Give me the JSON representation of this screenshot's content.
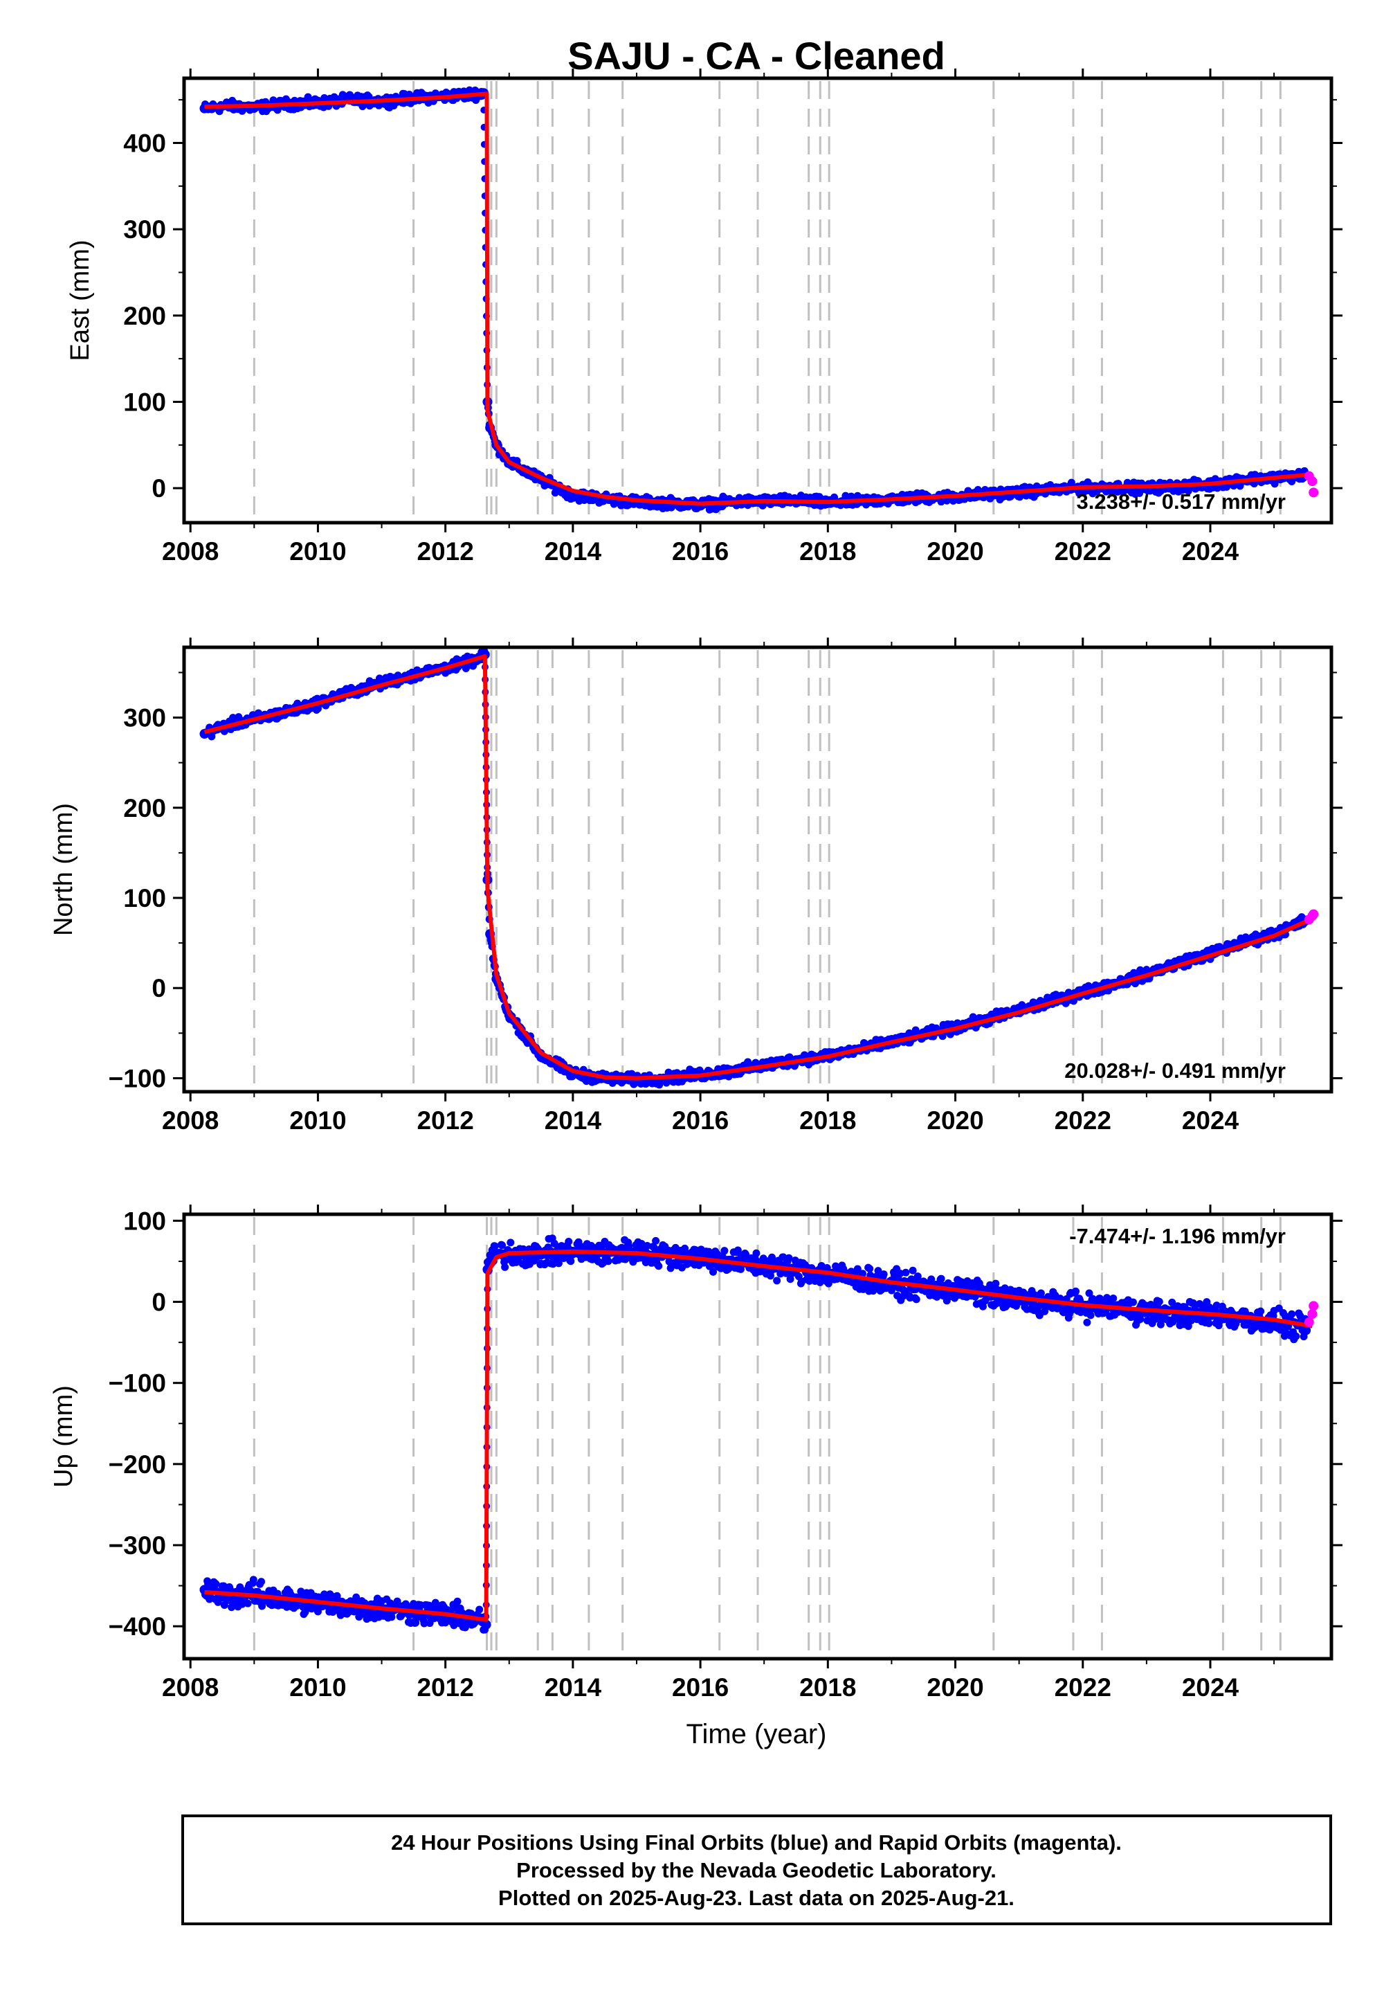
{
  "title": "SAJU  - CA - Cleaned",
  "xlabel": "Time (year)",
  "caption": {
    "line1": "24 Hour Positions Using Final Orbits (blue) and Rapid Orbits (magenta).",
    "line2": "Processed by the Nevada Geodetic Laboratory.",
    "line3": "Plotted on 2025-Aug-23. Last data on 2025-Aug-21."
  },
  "colors": {
    "final_orbits": "#0000ff",
    "rapid_orbits": "#ff00ff",
    "model": "#ff0000",
    "events": "#c0c0c0"
  },
  "chart_data": [
    {
      "type": "scatter",
      "component": "east",
      "ylabel": "East (mm)",
      "xlim": [
        2007.9,
        2025.9
      ],
      "ylim": [
        -40,
        475
      ],
      "xticks": [
        2008,
        2010,
        2012,
        2014,
        2016,
        2018,
        2020,
        2022,
        2024
      ],
      "yticks": [
        0,
        100,
        200,
        300,
        400
      ],
      "rate_label": "3.238+/- 0.517 mm/yr",
      "rate_position": "bottom-right",
      "event_lines": [
        2009.0,
        2011.5,
        2012.65,
        2012.72,
        2012.8,
        2013.45,
        2013.68,
        2014.25,
        2014.78,
        2016.3,
        2016.9,
        2017.7,
        2017.88,
        2018.02,
        2020.6,
        2021.85,
        2022.3,
        2024.2,
        2024.8,
        2025.1
      ],
      "series": [
        {
          "role": "final",
          "x": [
            2008.22,
            2008.6,
            2009.0,
            2009.5,
            2010.0,
            2010.5,
            2011.0,
            2011.5,
            2012.0,
            2012.5,
            2012.6,
            2012.66,
            2012.7,
            2012.8,
            2013.0,
            2013.5,
            2014.0,
            2014.5,
            2015.0,
            2015.5,
            2016.0,
            2016.5,
            2017.0,
            2017.5,
            2018.0,
            2018.5,
            2019.0,
            2019.5,
            2020.0,
            2020.5,
            2021.0,
            2021.5,
            2022.0,
            2022.5,
            2023.0,
            2023.5,
            2024.0,
            2024.5,
            2025.0,
            2025.5
          ],
          "y": [
            440,
            443,
            441,
            445,
            446,
            450,
            448,
            452,
            454,
            457,
            458,
            100,
            70,
            50,
            30,
            10,
            -8,
            -12,
            -16,
            -17,
            -19,
            -16,
            -15,
            -14,
            -17,
            -15,
            -13,
            -11,
            -10,
            -7,
            -5,
            -2,
            0,
            1,
            0,
            2,
            4,
            10,
            12,
            15
          ]
        },
        {
          "role": "rapid",
          "x": [
            2025.55,
            2025.6,
            2025.62
          ],
          "y": [
            14,
            8,
            -5
          ]
        },
        {
          "role": "model",
          "x": [
            2008.22,
            2009.0,
            2010.0,
            2011.0,
            2012.0,
            2012.65,
            2012.66,
            2012.8,
            2013.0,
            2013.5,
            2014.0,
            2014.5,
            2015.0,
            2016.0,
            2017.0,
            2018.0,
            2019.0,
            2020.0,
            2021.0,
            2022.0,
            2023.0,
            2024.0,
            2025.0,
            2025.6
          ],
          "y": [
            442,
            443,
            446,
            449,
            453,
            457,
            90,
            50,
            30,
            12,
            -3,
            -10,
            -14,
            -18,
            -15,
            -16,
            -13,
            -9,
            -4,
            1,
            2,
            5,
            12,
            16
          ]
        }
      ]
    },
    {
      "type": "scatter",
      "component": "north",
      "ylabel": "North (mm)",
      "xlim": [
        2007.9,
        2025.9
      ],
      "ylim": [
        -115,
        378
      ],
      "xticks": [
        2008,
        2010,
        2012,
        2014,
        2016,
        2018,
        2020,
        2022,
        2024
      ],
      "yticks": [
        -100,
        0,
        100,
        200,
        300
      ],
      "rate_label": "20.028+/- 0.491 mm/yr",
      "rate_position": "bottom-right",
      "event_lines": [
        2009.0,
        2011.5,
        2012.65,
        2012.72,
        2012.8,
        2013.45,
        2013.68,
        2014.25,
        2014.78,
        2016.3,
        2016.9,
        2017.7,
        2017.88,
        2018.02,
        2020.6,
        2021.85,
        2022.3,
        2024.2,
        2024.8,
        2025.1
      ],
      "series": [
        {
          "role": "final",
          "x": [
            2008.22,
            2008.6,
            2009.0,
            2009.5,
            2010.0,
            2010.5,
            2011.0,
            2011.5,
            2012.0,
            2012.5,
            2012.62,
            2012.66,
            2012.7,
            2012.8,
            2013.0,
            2013.5,
            2014.0,
            2014.5,
            2015.0,
            2015.5,
            2016.0,
            2016.5,
            2017.0,
            2017.5,
            2018.0,
            2018.5,
            2019.0,
            2019.5,
            2020.0,
            2020.5,
            2021.0,
            2021.5,
            2022.0,
            2022.5,
            2023.0,
            2023.5,
            2024.0,
            2024.5,
            2025.0,
            2025.5
          ],
          "y": [
            282,
            292,
            298,
            306,
            316,
            328,
            338,
            347,
            355,
            364,
            370,
            120,
            60,
            10,
            -30,
            -75,
            -95,
            -100,
            -102,
            -100,
            -96,
            -92,
            -86,
            -80,
            -75,
            -68,
            -60,
            -52,
            -44,
            -35,
            -25,
            -15,
            -5,
            5,
            15,
            28,
            38,
            50,
            60,
            75
          ]
        },
        {
          "role": "rapid",
          "x": [
            2025.55,
            2025.6,
            2025.62
          ],
          "y": [
            76,
            80,
            82
          ]
        },
        {
          "role": "model",
          "x": [
            2008.22,
            2009.0,
            2010.0,
            2011.0,
            2012.0,
            2012.62,
            2012.66,
            2012.8,
            2013.0,
            2013.5,
            2014.0,
            2014.5,
            2015.0,
            2016.0,
            2017.0,
            2018.0,
            2019.0,
            2020.0,
            2021.0,
            2022.0,
            2023.0,
            2024.0,
            2025.0,
            2025.6
          ],
          "y": [
            284,
            298,
            316,
            336,
            355,
            368,
            110,
            15,
            -28,
            -72,
            -92,
            -99,
            -100,
            -97,
            -87,
            -76,
            -60,
            -45,
            -27,
            -6,
            14,
            36,
            58,
            77
          ]
        }
      ]
    },
    {
      "type": "scatter",
      "component": "up",
      "ylabel": "Up (mm)",
      "xlim": [
        2007.9,
        2025.9
      ],
      "ylim": [
        -440,
        108
      ],
      "xticks": [
        2008,
        2010,
        2012,
        2014,
        2016,
        2018,
        2020,
        2022,
        2024
      ],
      "yticks": [
        -400,
        -300,
        -200,
        -100,
        0,
        100
      ],
      "rate_label": "-7.474+/- 1.196 mm/yr",
      "rate_position": "top-right",
      "event_lines": [
        2009.0,
        2011.5,
        2012.65,
        2012.72,
        2012.8,
        2013.45,
        2013.68,
        2014.25,
        2014.78,
        2016.3,
        2016.9,
        2017.7,
        2017.88,
        2018.02,
        2020.6,
        2021.85,
        2022.3,
        2024.2,
        2024.8,
        2025.1
      ],
      "series": [
        {
          "role": "final",
          "x": [
            2008.22,
            2008.6,
            2009.0,
            2009.5,
            2010.0,
            2010.5,
            2011.0,
            2011.5,
            2012.0,
            2012.5,
            2012.64,
            2012.66,
            2012.7,
            2012.8,
            2013.0,
            2013.5,
            2014.0,
            2014.5,
            2015.0,
            2015.5,
            2016.0,
            2016.5,
            2017.0,
            2017.5,
            2018.0,
            2018.5,
            2019.0,
            2019.5,
            2020.0,
            2020.5,
            2021.0,
            2021.5,
            2022.0,
            2022.5,
            2023.0,
            2023.5,
            2024.0,
            2024.5,
            2025.0,
            2025.5
          ],
          "y": [
            -355,
            -362,
            -360,
            -368,
            -370,
            -375,
            -378,
            -382,
            -385,
            -392,
            -398,
            40,
            50,
            58,
            60,
            58,
            62,
            60,
            62,
            58,
            55,
            50,
            45,
            40,
            35,
            28,
            22,
            18,
            15,
            8,
            2,
            -2,
            -5,
            -8,
            -12,
            -15,
            -15,
            -20,
            -25,
            -35
          ]
        },
        {
          "role": "rapid",
          "x": [
            2025.55,
            2025.6,
            2025.62
          ],
          "y": [
            -25,
            -15,
            -5
          ]
        },
        {
          "role": "model",
          "x": [
            2008.22,
            2009.0,
            2010.0,
            2011.0,
            2012.0,
            2012.64,
            2012.66,
            2012.8,
            2013.0,
            2014.0,
            2015.0,
            2016.0,
            2017.0,
            2018.0,
            2019.0,
            2020.0,
            2021.0,
            2022.0,
            2023.0,
            2024.0,
            2025.0,
            2025.6
          ],
          "y": [
            -358,
            -362,
            -370,
            -378,
            -385,
            -392,
            35,
            55,
            60,
            62,
            60,
            53,
            44,
            36,
            24,
            15,
            5,
            -4,
            -10,
            -15,
            -22,
            -30
          ]
        }
      ]
    }
  ]
}
